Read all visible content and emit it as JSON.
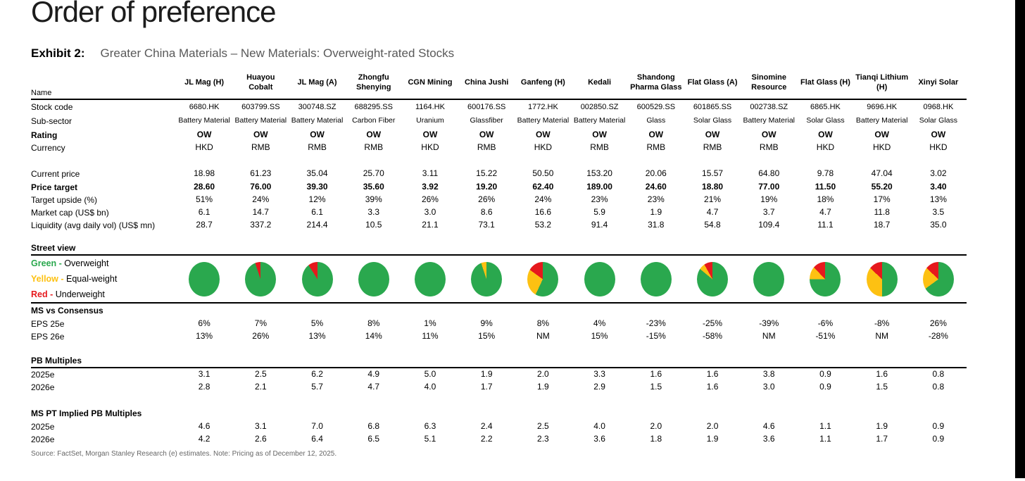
{
  "page": {
    "title": "Order of preference",
    "exhibit_label": "Exhibit 2:",
    "exhibit_title": "Greater China Materials – New Materials: Overweight-rated Stocks",
    "source": "Source: FactSet, Morgan Stanley Research (e) estimates. Note: Pricing as of December 12, 2025."
  },
  "colors": {
    "green": "#2aa84e",
    "yellow": "#fdc112",
    "red": "#e6191d"
  },
  "table": {
    "name_header": "Name",
    "columns": [
      "JL Mag (H)",
      "Huayou Cobalt",
      "JL Mag (A)",
      "Zhongfu Shenying",
      "CGN Mining",
      "China Jushi",
      "Ganfeng (H)",
      "Kedali",
      "Shandong Pharma Glass",
      "Flat Glass (A)",
      "Sinomine Resource",
      "Flat Glass (H)",
      "Tianqi Lithium (H)",
      "Xinyi Solar"
    ],
    "rows": [
      {
        "id": "stock-code",
        "kind": "data",
        "label": "Stock code",
        "values": [
          "6680.HK",
          "603799.SS",
          "300748.SZ",
          "688295.SS",
          "1164.HK",
          "600176.SS",
          "1772.HK",
          "002850.SZ",
          "600529.SS",
          "601865.SS",
          "002738.SZ",
          "6865.HK",
          "9696.HK",
          "0968.HK"
        ]
      },
      {
        "id": "sub-sector",
        "kind": "data",
        "label": "Sub-sector",
        "values": [
          "Battery Material",
          "Battery Material",
          "Battery Material",
          "Carbon Fiber",
          "Uranium",
          "Glassfiber",
          "Battery Material",
          "Battery Material",
          "Glass",
          "Solar Glass",
          "Battery Material",
          "Solar Glass",
          "Battery Material",
          "Solar Glass"
        ]
      },
      {
        "id": "rating",
        "kind": "data",
        "label": "Rating",
        "values": [
          "OW",
          "OW",
          "OW",
          "OW",
          "OW",
          "OW",
          "OW",
          "OW",
          "OW",
          "OW",
          "OW",
          "OW",
          "OW",
          "OW"
        ]
      },
      {
        "id": "currency",
        "kind": "data",
        "label": "Currency",
        "values": [
          "HKD",
          "RMB",
          "RMB",
          "RMB",
          "HKD",
          "RMB",
          "HKD",
          "RMB",
          "RMB",
          "RMB",
          "RMB",
          "HKD",
          "HKD",
          "HKD"
        ]
      },
      {
        "id": "gap-1",
        "kind": "spacer"
      },
      {
        "id": "current-price",
        "kind": "data",
        "label": "Current price",
        "values": [
          "18.98",
          "61.23",
          "35.04",
          "25.70",
          "3.11",
          "15.22",
          "50.50",
          "153.20",
          "20.06",
          "15.57",
          "64.80",
          "9.78",
          "47.04",
          "3.02"
        ]
      },
      {
        "id": "price-target",
        "kind": "data",
        "label": "Price target",
        "values": [
          "28.60",
          "76.00",
          "39.30",
          "35.60",
          "3.92",
          "19.20",
          "62.40",
          "189.00",
          "24.60",
          "18.80",
          "77.00",
          "11.50",
          "55.20",
          "3.40"
        ]
      },
      {
        "id": "target-upside",
        "kind": "data",
        "label": "Target upside (%)",
        "values": [
          "51%",
          "24%",
          "12%",
          "39%",
          "26%",
          "26%",
          "24%",
          "23%",
          "23%",
          "21%",
          "19%",
          "18%",
          "17%",
          "13%"
        ]
      },
      {
        "id": "market-cap",
        "kind": "data",
        "label": "Market cap (US$ bn)",
        "values": [
          "6.1",
          "14.7",
          "6.1",
          "3.3",
          "3.0",
          "8.6",
          "16.6",
          "5.9",
          "1.9",
          "4.7",
          "3.7",
          "4.7",
          "11.8",
          "3.5"
        ]
      },
      {
        "id": "liquidity",
        "kind": "data",
        "label": "Liquidity (avg daily vol) (US$ mn)",
        "values": [
          "28.7",
          "337.2",
          "214.4",
          "10.5",
          "21.1",
          "73.1",
          "53.2",
          "91.4",
          "31.8",
          "54.8",
          "109.4",
          "11.1",
          "18.7",
          "35.0"
        ]
      },
      {
        "id": "gap-2",
        "kind": "spacer"
      },
      {
        "id": "street-view",
        "kind": "section",
        "label": "Street view"
      },
      {
        "id": "street-pies",
        "kind": "pies"
      },
      {
        "id": "ms-vs-consensus",
        "kind": "section",
        "label": "MS vs Consensus"
      },
      {
        "id": "eps-25e",
        "kind": "data",
        "label": "EPS 25e",
        "values": [
          "6%",
          "7%",
          "5%",
          "8%",
          "1%",
          "9%",
          "8%",
          "4%",
          "-23%",
          "-25%",
          "-39%",
          "-6%",
          "-8%",
          "26%"
        ]
      },
      {
        "id": "eps-26e",
        "kind": "data",
        "label": "EPS 26e",
        "values": [
          "13%",
          "26%",
          "13%",
          "14%",
          "11%",
          "15%",
          "NM",
          "15%",
          "-15%",
          "-58%",
          "NM",
          "-51%",
          "NM",
          "-28%"
        ]
      },
      {
        "id": "gap-3",
        "kind": "spacer"
      },
      {
        "id": "pb-multiples",
        "kind": "section",
        "label": "PB Multiples"
      },
      {
        "id": "pb-2025e",
        "kind": "data",
        "label": "2025e",
        "values": [
          "3.1",
          "2.5",
          "6.2",
          "4.9",
          "5.0",
          "1.9",
          "2.0",
          "3.3",
          "1.6",
          "1.6",
          "3.8",
          "0.9",
          "1.6",
          "0.8"
        ]
      },
      {
        "id": "pb-2026e",
        "kind": "data",
        "label": "2026e",
        "values": [
          "2.8",
          "2.1",
          "5.7",
          "4.7",
          "4.0",
          "1.7",
          "1.9",
          "2.9",
          "1.5",
          "1.6",
          "3.0",
          "0.9",
          "1.5",
          "0.8"
        ]
      },
      {
        "id": "gap-4",
        "kind": "spacer"
      },
      {
        "id": "ms-pt-implied",
        "kind": "section",
        "label": "MS PT Implied PB Multiples"
      },
      {
        "id": "pt-pb-2025e",
        "kind": "data",
        "label": "2025e",
        "values": [
          "4.6",
          "3.1",
          "7.0",
          "6.8",
          "6.3",
          "2.4",
          "2.5",
          "4.0",
          "2.0",
          "2.0",
          "4.6",
          "1.1",
          "1.9",
          "0.9"
        ]
      },
      {
        "id": "pt-pb-2026e",
        "kind": "data",
        "label": "2026e",
        "values": [
          "4.2",
          "2.6",
          "6.4",
          "6.5",
          "5.1",
          "2.2",
          "2.3",
          "3.6",
          "1.8",
          "1.9",
          "3.6",
          "1.1",
          "1.7",
          "0.9"
        ]
      }
    ]
  },
  "street_view": {
    "legend": [
      {
        "label": "Green -",
        "meaning": "Overweight",
        "color_key": "green"
      },
      {
        "label": "Yellow -",
        "meaning": "Equal-weight",
        "color_key": "yellow"
      },
      {
        "label": "Red -",
        "meaning": "Underweight",
        "color_key": "red"
      }
    ],
    "pies": [
      {
        "green": 100,
        "yellow": 0,
        "red": 0
      },
      {
        "green": 95,
        "yellow": 0,
        "red": 5
      },
      {
        "green": 91,
        "yellow": 0,
        "red": 9
      },
      {
        "green": 100,
        "yellow": 0,
        "red": 0
      },
      {
        "green": 100,
        "yellow": 0,
        "red": 0
      },
      {
        "green": 95,
        "yellow": 5,
        "red": 0
      },
      {
        "green": 57,
        "yellow": 28,
        "red": 15
      },
      {
        "green": 100,
        "yellow": 0,
        "red": 0
      },
      {
        "green": 100,
        "yellow": 0,
        "red": 0
      },
      {
        "green": 86,
        "yellow": 6,
        "red": 8
      },
      {
        "green": 100,
        "yellow": 0,
        "red": 0
      },
      {
        "green": 75,
        "yellow": 13,
        "red": 12
      },
      {
        "green": 50,
        "yellow": 37,
        "red": 13
      },
      {
        "green": 65,
        "yellow": 22,
        "red": 13
      }
    ]
  }
}
